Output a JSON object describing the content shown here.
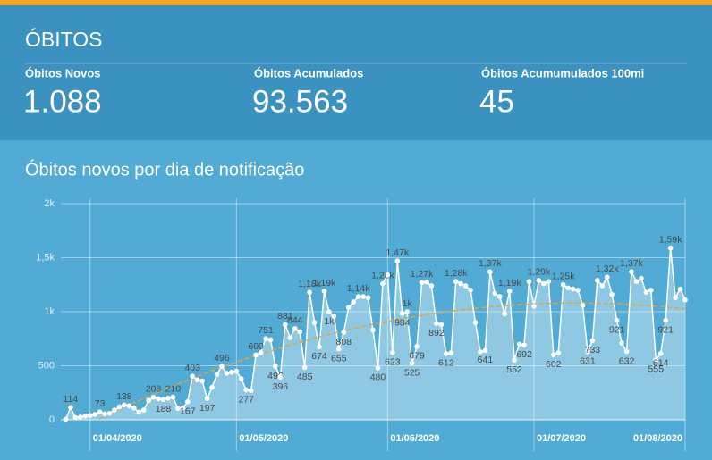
{
  "header": {
    "title": "ÓBITOS",
    "kpis": [
      {
        "label": "Óbitos Novos",
        "value": "1.088"
      },
      {
        "label": "Óbitos Acumulados",
        "value": "93.563"
      },
      {
        "label": "Óbitos Acumumulados 100mi",
        "value": "45"
      }
    ]
  },
  "chart_data": {
    "type": "line",
    "title": "Óbitos novos por dia de notificação",
    "color": "#ffffff",
    "trendline_color": "#e8a33a",
    "grid": true,
    "xlim": [
      "26/03/2020",
      "01/08/2020"
    ],
    "xticks": [
      "01/04/2020",
      "01/05/2020",
      "01/06/2020",
      "01/07/2020",
      "01/08/2020"
    ],
    "ylim": [
      0,
      2000
    ],
    "yticks": [
      0,
      500,
      {
        "value": 1000,
        "label": "1k"
      },
      {
        "value": 1500,
        "label": "1,5k"
      },
      {
        "value": 2000,
        "label": "2k"
      }
    ],
    "x": [
      "27/03/2020",
      "28/03/2020",
      "29/03/2020",
      "30/03/2020",
      "31/03/2020",
      "01/04/2020",
      "02/04/2020",
      "03/04/2020",
      "04/04/2020",
      "05/04/2020",
      "06/04/2020",
      "07/04/2020",
      "08/04/2020",
      "09/04/2020",
      "10/04/2020",
      "11/04/2020",
      "12/04/2020",
      "13/04/2020",
      "14/04/2020",
      "15/04/2020",
      "16/04/2020",
      "17/04/2020",
      "18/04/2020",
      "19/04/2020",
      "20/04/2020",
      "21/04/2020",
      "22/04/2020",
      "23/04/2020",
      "24/04/2020",
      "25/04/2020",
      "26/04/2020",
      "27/04/2020",
      "28/04/2020",
      "29/04/2020",
      "30/04/2020",
      "01/05/2020",
      "02/05/2020",
      "03/05/2020",
      "04/05/2020",
      "05/05/2020",
      "06/05/2020",
      "07/05/2020",
      "08/05/2020",
      "09/05/2020",
      "10/05/2020",
      "11/05/2020",
      "12/05/2020",
      "13/05/2020",
      "14/05/2020",
      "15/05/2020",
      "16/05/2020",
      "17/05/2020",
      "18/05/2020",
      "19/05/2020",
      "20/05/2020",
      "21/05/2020",
      "22/05/2020",
      "23/05/2020",
      "24/05/2020",
      "25/05/2020",
      "26/05/2020",
      "27/05/2020",
      "28/05/2020",
      "29/05/2020",
      "30/05/2020",
      "31/05/2020",
      "01/06/2020",
      "02/06/2020",
      "03/06/2020",
      "04/06/2020",
      "05/06/2020",
      "06/06/2020",
      "07/06/2020",
      "08/06/2020",
      "09/06/2020",
      "10/06/2020",
      "11/06/2020",
      "12/06/2020",
      "13/06/2020",
      "14/06/2020",
      "15/06/2020",
      "16/06/2020",
      "17/06/2020",
      "18/06/2020",
      "19/06/2020",
      "20/06/2020",
      "21/06/2020",
      "22/06/2020",
      "23/06/2020",
      "24/06/2020",
      "25/06/2020",
      "26/06/2020",
      "27/06/2020",
      "28/06/2020",
      "29/06/2020",
      "30/06/2020",
      "01/07/2020",
      "02/07/2020",
      "03/07/2020",
      "04/07/2020",
      "05/07/2020",
      "06/07/2020",
      "07/07/2020",
      "08/07/2020",
      "09/07/2020",
      "10/07/2020",
      "11/07/2020",
      "12/07/2020",
      "13/07/2020",
      "14/07/2020",
      "15/07/2020",
      "16/07/2020",
      "17/07/2020",
      "18/07/2020",
      "19/07/2020",
      "20/07/2020",
      "21/07/2020",
      "22/07/2020",
      "23/07/2020",
      "24/07/2020",
      "25/07/2020",
      "26/07/2020",
      "27/07/2020",
      "28/07/2020",
      "29/07/2020",
      "30/07/2020",
      "31/07/2020",
      "01/08/2020"
    ],
    "values": [
      5,
      114,
      20,
      25,
      35,
      40,
      50,
      73,
      55,
      60,
      90,
      120,
      138,
      130,
      110,
      70,
      90,
      180,
      208,
      195,
      188,
      200,
      210,
      105,
      110,
      167,
      403,
      370,
      360,
      197,
      300,
      420,
      496,
      430,
      440,
      450,
      380,
      277,
      270,
      600,
      620,
      751,
      740,
      496,
      396,
      881,
      760,
      844,
      815,
      485,
      1180,
      900,
      674,
      1190,
      1000,
      960,
      655,
      808,
      1040,
      1090,
      1140,
      1140,
      1130,
      830,
      480,
      1260,
      1340,
      623,
      1470,
      984,
      1000,
      525,
      679,
      1270,
      1275,
      1240,
      892,
      880,
      612,
      620,
      1280,
      1260,
      1240,
      1200,
      900,
      630,
      641,
      1370,
      1170,
      1140,
      980,
      1190,
      552,
      700,
      692,
      1280,
      1050,
      1290,
      1260,
      1280,
      602,
      620,
      1250,
      1220,
      1210,
      1200,
      1060,
      631,
      733,
      1290,
      1240,
      1320,
      1160,
      921,
      710,
      632,
      1370,
      1280,
      1310,
      1180,
      1200,
      555,
      614,
      921,
      1590,
      1130,
      1210,
      1110
    ],
    "value_labels": [
      null,
      "114",
      null,
      null,
      null,
      null,
      null,
      "73",
      null,
      null,
      null,
      null,
      "138",
      null,
      null,
      null,
      null,
      null,
      "208",
      null,
      "188",
      null,
      "210",
      null,
      null,
      "167",
      "403",
      null,
      null,
      "197",
      null,
      null,
      "496",
      null,
      null,
      null,
      null,
      "277",
      null,
      "600",
      null,
      "751",
      null,
      "496",
      "396",
      "881",
      null,
      "844",
      null,
      "485",
      "1,18k",
      null,
      "674",
      "1,19k",
      "1k",
      null,
      "655",
      "808",
      null,
      null,
      "1,14k",
      null,
      null,
      null,
      "480",
      "1,26k",
      null,
      "623",
      "1,47k",
      "984",
      "1k",
      "525",
      "679",
      "1,27k",
      null,
      null,
      "892",
      null,
      "612",
      null,
      "1,28k",
      null,
      null,
      null,
      null,
      null,
      "641",
      "1,37k",
      null,
      null,
      null,
      "1,19k",
      "552",
      null,
      "692",
      null,
      null,
      "1,29k",
      null,
      null,
      "602",
      null,
      "1,25k",
      null,
      null,
      null,
      null,
      "631",
      "733",
      null,
      null,
      "1,32k",
      null,
      "921",
      null,
      "632",
      "1,37k",
      null,
      null,
      null,
      null,
      "555",
      "614",
      "921",
      "1,59k",
      null,
      null,
      null
    ]
  }
}
